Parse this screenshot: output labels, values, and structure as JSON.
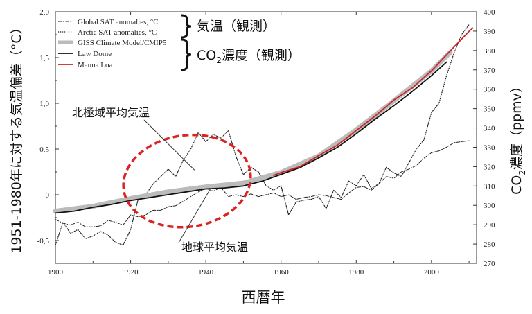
{
  "chart_data": {
    "type": "line",
    "xlabel": "西暦年",
    "ylabel_left": "1951-1980年に対する気温偏差（°C）",
    "ylabel_right_prefix": "CO",
    "ylabel_right_sub": "2",
    "ylabel_right_suffix": "濃度（ppmv）",
    "xlim": [
      1900,
      2012
    ],
    "ylim_left": [
      -0.75,
      2.0
    ],
    "ylim_right": [
      270,
      400
    ],
    "x_ticks": [
      1900,
      1920,
      1940,
      1960,
      1980,
      2000
    ],
    "left_ticks": [
      {
        "value": -0.5,
        "label": "-0,5"
      },
      {
        "value": 0,
        "label": "0"
      },
      {
        "value": 0.5,
        "label": "0,5"
      },
      {
        "value": 1.0,
        "label": "1,0"
      },
      {
        "value": 1.5,
        "label": "1,5"
      },
      {
        "value": 2.0,
        "label": "2,0"
      }
    ],
    "right_ticks": [
      270,
      280,
      290,
      300,
      310,
      320,
      330,
      340,
      350,
      360,
      370,
      380,
      390,
      400
    ],
    "legend": [
      {
        "label": "Global SAT anomalies, °C",
        "style": "dashed",
        "color": "#222222"
      },
      {
        "label": "Arctic SAT anomalies, °C",
        "style": "dotted",
        "color": "#222222"
      },
      {
        "label": "GISS Climate Model/CMIP5",
        "style": "band",
        "color": "#bbbbbb"
      },
      {
        "label": "Law Dome",
        "style": "solid",
        "color": "#111111"
      },
      {
        "label": "Mauna Loa",
        "style": "solid",
        "color": "#cc2222"
      }
    ],
    "groups": [
      {
        "label": "気温（観測）"
      },
      {
        "label_prefix": "CO",
        "label_sub": "2",
        "label_suffix": "濃度（観測）"
      }
    ],
    "annotations": [
      {
        "text": "北極域平均気温",
        "points_to": [
          1937,
          0.27
        ]
      },
      {
        "text": "地球平均気温",
        "points_to": [
          1941,
          0.05
        ]
      }
    ],
    "highlight_ellipse": {
      "x_center": 1935,
      "y_center": 0.15,
      "x_radius": 17,
      "y_radius": 0.5,
      "color": "#dd2222",
      "style": "dashed"
    },
    "series": [
      {
        "name": "Global SAT anomalies, °C",
        "axis": "left",
        "style": "dashed",
        "color": "#222222",
        "x": [
          1900,
          1902,
          1904,
          1906,
          1908,
          1910,
          1912,
          1914,
          1916,
          1918,
          1920,
          1922,
          1924,
          1926,
          1928,
          1930,
          1932,
          1934,
          1936,
          1938,
          1940,
          1942,
          1944,
          1946,
          1948,
          1950,
          1952,
          1954,
          1956,
          1958,
          1960,
          1962,
          1964,
          1966,
          1968,
          1970,
          1972,
          1974,
          1976,
          1978,
          1980,
          1982,
          1984,
          1986,
          1988,
          1990,
          1992,
          1994,
          1996,
          1998,
          2000,
          2002,
          2004,
          2006,
          2008,
          2010
        ],
        "y": [
          -0.27,
          -0.31,
          -0.33,
          -0.3,
          -0.35,
          -0.35,
          -0.34,
          -0.28,
          -0.3,
          -0.33,
          -0.22,
          -0.24,
          -0.22,
          -0.17,
          -0.17,
          -0.13,
          -0.12,
          -0.07,
          -0.02,
          0.03,
          0.07,
          0.04,
          0.08,
          -0.02,
          0.0,
          -0.02,
          0.01,
          -0.02,
          0.0,
          0.02,
          -0.02,
          0.0,
          -0.05,
          -0.03,
          -0.02,
          0.0,
          -0.01,
          -0.03,
          -0.05,
          0.02,
          0.08,
          0.09,
          0.05,
          0.12,
          0.2,
          0.18,
          0.25,
          0.28,
          0.32,
          0.4,
          0.46,
          0.48,
          0.52,
          0.57,
          0.58,
          0.59
        ]
      },
      {
        "name": "Arctic SAT anomalies, °C",
        "axis": "left",
        "style": "dotted",
        "color": "#222222",
        "x": [
          1900,
          1902,
          1904,
          1906,
          1908,
          1910,
          1912,
          1914,
          1916,
          1918,
          1920,
          1922,
          1924,
          1926,
          1928,
          1930,
          1932,
          1934,
          1936,
          1938,
          1940,
          1942,
          1944,
          1946,
          1948,
          1950,
          1952,
          1954,
          1956,
          1958,
          1960,
          1962,
          1964,
          1966,
          1968,
          1970,
          1972,
          1974,
          1976,
          1978,
          1980,
          1982,
          1984,
          1986,
          1988,
          1990,
          1992,
          1994,
          1996,
          1998,
          2000,
          2002,
          2004,
          2006,
          2008,
          2010
        ],
        "y": [
          -0.55,
          -0.3,
          -0.42,
          -0.38,
          -0.48,
          -0.45,
          -0.4,
          -0.44,
          -0.52,
          -0.55,
          -0.38,
          -0.05,
          0.0,
          0.12,
          0.2,
          0.28,
          0.2,
          0.38,
          0.5,
          0.68,
          0.58,
          0.66,
          0.62,
          0.7,
          0.42,
          0.22,
          0.3,
          0.25,
          0.1,
          0.05,
          0.1,
          -0.22,
          -0.08,
          -0.06,
          -0.05,
          -0.02,
          -0.15,
          0.05,
          -0.03,
          0.15,
          0.1,
          0.22,
          0.07,
          0.12,
          0.3,
          0.24,
          0.2,
          0.35,
          0.5,
          0.6,
          0.9,
          1.0,
          1.3,
          1.55,
          1.75,
          1.86
        ]
      },
      {
        "name": "GISS Climate Model/CMIP5",
        "axis": "right",
        "style": "band",
        "color": "#bbbbbb",
        "x": [
          1900,
          1910,
          1920,
          1930,
          1940,
          1950,
          1960,
          1970,
          1980,
          1990,
          2000,
          2005
        ],
        "y": [
          297.0,
          299.5,
          303.5,
          307.0,
          309.5,
          311.5,
          317.0,
          325.5,
          339.0,
          354.0,
          369.5,
          379.0
        ]
      },
      {
        "name": "Law Dome",
        "axis": "right",
        "style": "solid",
        "color": "#111111",
        "x": [
          1900,
          1905,
          1910,
          1915,
          1920,
          1925,
          1930,
          1935,
          1940,
          1945,
          1950,
          1955,
          1960,
          1965,
          1970,
          1975,
          1980,
          1985,
          1990,
          1995,
          2000,
          2004
        ],
        "y": [
          296.0,
          297.0,
          299.0,
          300.5,
          302.5,
          304.0,
          305.5,
          307.0,
          308.5,
          309.0,
          310.0,
          312.5,
          316.0,
          319.5,
          324.5,
          330.0,
          337.0,
          344.5,
          351.5,
          359.0,
          367.0,
          374.0
        ]
      },
      {
        "name": "Mauna Loa",
        "axis": "right",
        "style": "solid",
        "color": "#cc2222",
        "x": [
          1958,
          1960,
          1965,
          1970,
          1975,
          1980,
          1985,
          1990,
          1995,
          2000,
          2005,
          2010,
          2011
        ],
        "y": [
          315.5,
          316.9,
          320.0,
          325.7,
          331.1,
          338.7,
          346.1,
          354.4,
          360.8,
          369.5,
          379.8,
          389.9,
          391.6
        ]
      }
    ]
  }
}
